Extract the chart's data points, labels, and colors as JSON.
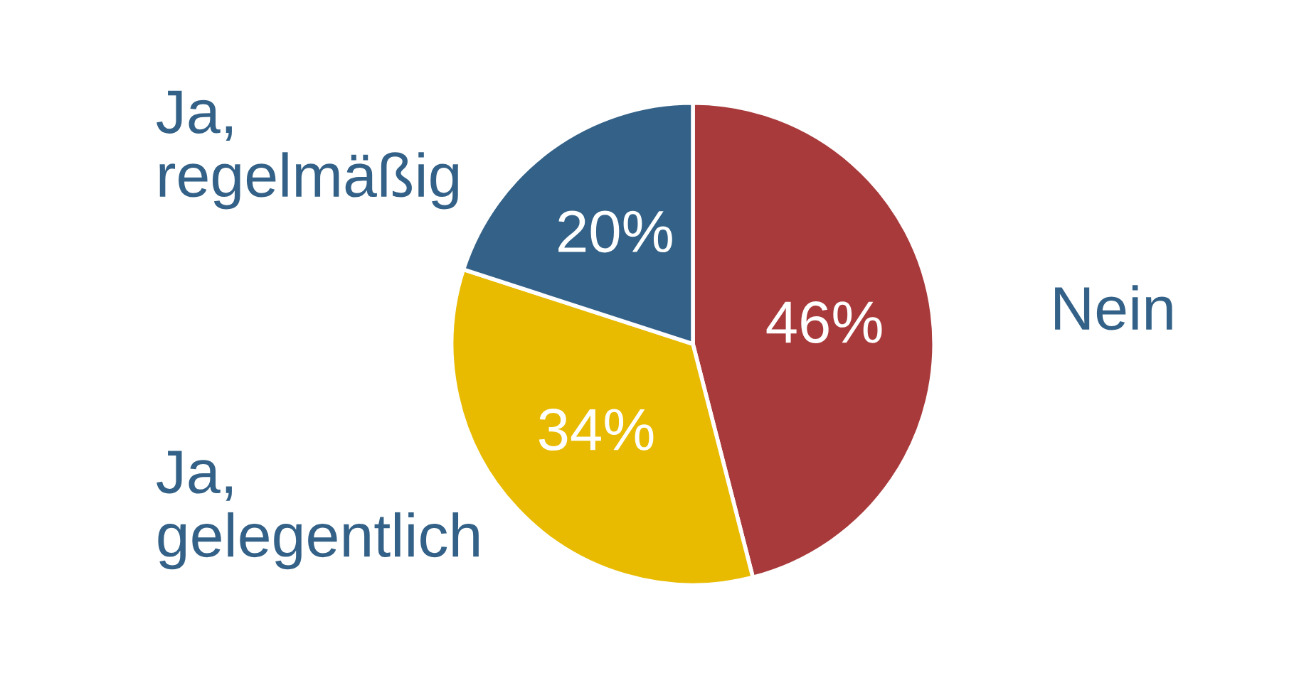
{
  "chart_data": {
    "type": "pie",
    "categories": [
      "Nein",
      "Ja,\ngelegentlich",
      "Ja,\nregelmäßig"
    ],
    "values": [
      46,
      34,
      20
    ],
    "colors": [
      "#a93a3b",
      "#e8bb00",
      "#336187"
    ],
    "value_labels": [
      "46%",
      "34%",
      "20%"
    ]
  }
}
